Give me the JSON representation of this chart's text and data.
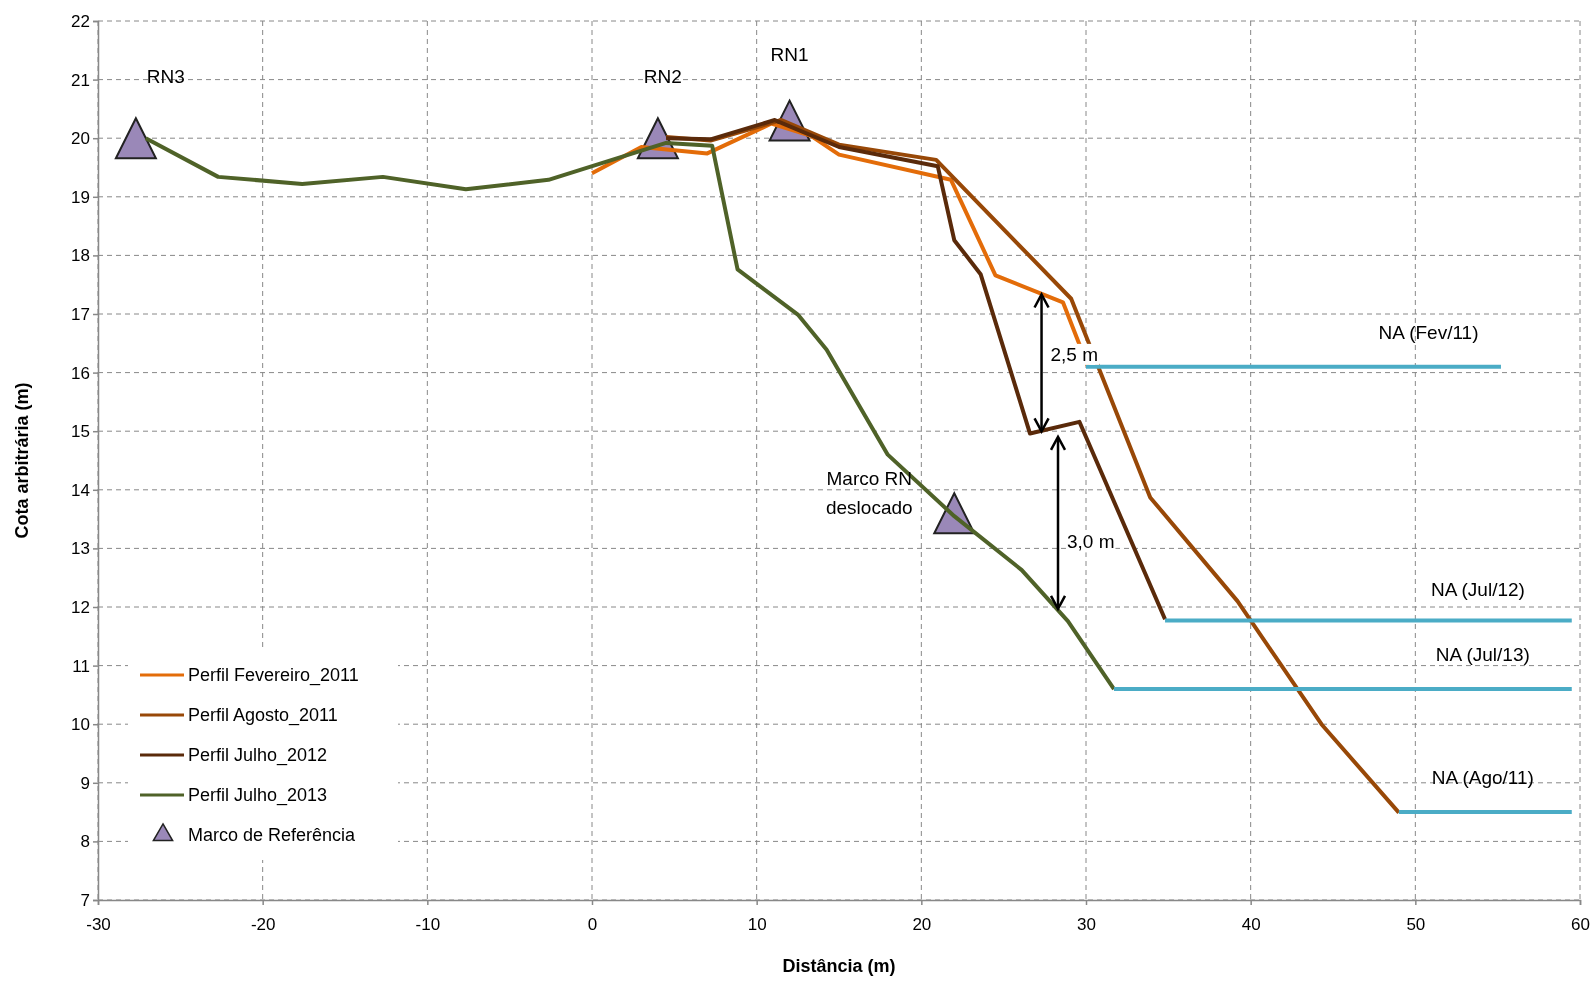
{
  "chart_data": {
    "type": "line",
    "xlabel": "Distância (m)",
    "ylabel": "Cota arbitrária (m)",
    "xlim": [
      -30,
      60
    ],
    "xticks": [
      -30,
      -20,
      -10,
      0,
      10,
      20,
      30,
      40,
      50,
      60
    ],
    "ylim": [
      7,
      22
    ],
    "yticks": [
      7,
      8,
      9,
      10,
      11,
      12,
      13,
      14,
      15,
      16,
      17,
      18,
      19,
      20,
      21,
      22
    ],
    "grid": true,
    "legend": "bottom left",
    "line_style": "solid",
    "series": [
      {
        "name": "Perfil Fevereiro_2011",
        "color": "#e36c09",
        "x": [
          0,
          3,
          7,
          10.9,
          13.3,
          15,
          21.8,
          24.5,
          28.6,
          30.1
        ],
        "values": [
          19.4,
          19.85,
          19.74,
          20.25,
          20.04,
          19.72,
          19.29,
          17.66,
          17.2,
          16.12
        ]
      },
      {
        "name": "Perfil Agosto_2011",
        "color": "#984807",
        "x": [
          4.5,
          7.2,
          11.5,
          15,
          20.9,
          29.1,
          33.9,
          39.2,
          44.3,
          49
        ],
        "values": [
          20.02,
          19.96,
          20.31,
          19.89,
          19.63,
          17.26,
          13.87,
          12.1,
          10,
          8.49
        ]
      },
      {
        "name": "Perfil Julho_2012",
        "color": "#5a2a0a",
        "x": [
          4.5,
          7.2,
          11.1,
          15,
          21,
          22,
          23.6,
          26.6,
          29.6,
          34.8
        ],
        "values": [
          20,
          19.98,
          20.31,
          19.85,
          19.52,
          18.26,
          17.68,
          14.96,
          15.16,
          11.79
        ]
      },
      {
        "name": "Perfil Julho_2013",
        "color": "#4f6228",
        "x": [
          -27.1,
          -22.7,
          -17.6,
          -12.7,
          -7.66,
          -2.64,
          4.5,
          7.3,
          8.84,
          12.5,
          14.25,
          17.96,
          22,
          26.1,
          28.9,
          31.7
        ],
        "values": [
          20,
          19.34,
          19.22,
          19.34,
          19.13,
          19.29,
          19.92,
          19.87,
          17.76,
          16.99,
          16.39,
          14.6,
          13.55,
          12.63,
          11.76,
          10.6
        ]
      },
      {
        "name": "Marco de Referência",
        "type": "scatter",
        "marker": "triangle",
        "color": "#9a88b8",
        "x": [
          -27.7,
          4,
          12,
          22
        ],
        "values": [
          20,
          20,
          20.3,
          13.6
        ]
      },
      {
        "type": "line",
        "color": "#4bacc6",
        "x": [
          30,
          55.2
        ],
        "values": [
          16.1,
          16.1
        ]
      },
      {
        "type": "line",
        "color": "#4bacc6",
        "x": [
          34.8,
          59.5
        ],
        "values": [
          11.77,
          11.77
        ]
      },
      {
        "type": "line",
        "color": "#4bacc6",
        "x": [
          31.7,
          59.5
        ],
        "values": [
          10.6,
          10.6
        ]
      },
      {
        "type": "line",
        "color": "#4bacc6",
        "x": [
          49,
          59.5
        ],
        "values": [
          8.5,
          8.5
        ]
      }
    ],
    "annotations": [
      {
        "text": "RN3",
        "x": -27.7,
        "y": 20
      },
      {
        "text": "RN2",
        "x": 4,
        "y": 20
      },
      {
        "text": "RN1",
        "x": 12,
        "y": 20.3
      },
      {
        "text": "Marco RN deslocado",
        "x": 22,
        "y": 13.6
      },
      "2,5 m",
      "3,0 m",
      {
        "text": "NA (Fev/11)",
        "x": 50.8,
        "y": 16.1
      },
      {
        "text": "NA (Jul/12)",
        "x": 53.8,
        "y": 11.77
      },
      {
        "text": "NA (Jul/13)",
        "x": 54.1,
        "y": 10.6
      },
      {
        "text": "NA (Ago/11)",
        "x": 54.1,
        "y": 8.5
      }
    ]
  }
}
